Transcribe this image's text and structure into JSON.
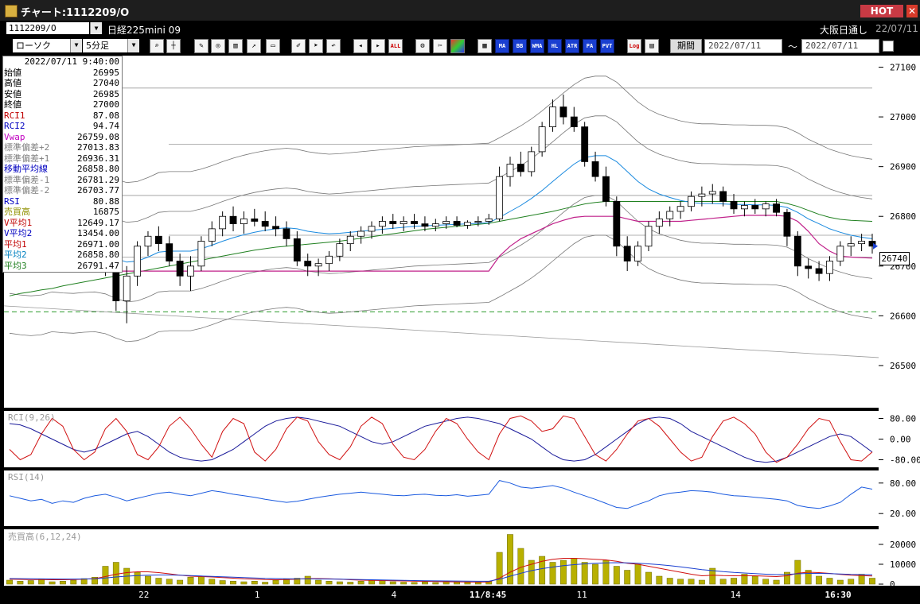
{
  "window": {
    "title": "チャート:1112209/O",
    "hot_label": "HOT",
    "close_glyph": "✕"
  },
  "header": {
    "symbol": "1112209/O",
    "instrument": "日経225mini 09",
    "exchange": "大阪日通し",
    "date": "22/07/11"
  },
  "toolbar": {
    "chart_type": "ローソク",
    "interval": "5分足",
    "period_label": "期間",
    "date_from": "2022/07/11",
    "date_to": "2022/07/11",
    "range_sep": "〜",
    "text_buttons": [
      "MA",
      "BB",
      "WMA",
      "HL",
      "ATR",
      "PA",
      "PVT"
    ],
    "log_label": "Log",
    "all_label": "ALL"
  },
  "infobox": {
    "datetime": "2022/07/11 9:40:00",
    "rows": [
      {
        "label": "始値",
        "value": "26995",
        "color": "#000000"
      },
      {
        "label": "高値",
        "value": "27040",
        "color": "#000000"
      },
      {
        "label": "安値",
        "value": "26985",
        "color": "#000000"
      },
      {
        "label": "終値",
        "value": "27000",
        "color": "#000000"
      },
      {
        "label": "RCI1",
        "value": "87.08",
        "color": "#c00000"
      },
      {
        "label": "RCI2",
        "value": "94.74",
        "color": "#0000c0"
      },
      {
        "label": "Vwap",
        "value": "26759.08",
        "color": "#c000c0"
      },
      {
        "label": "標準偏差+2",
        "value": "27013.83",
        "color": "#808080"
      },
      {
        "label": "標準偏差+1",
        "value": "26936.31",
        "color": "#808080"
      },
      {
        "label": "移動平均線",
        "value": "26858.80",
        "color": "#0000c0"
      },
      {
        "label": "標準偏差-1",
        "value": "26781.29",
        "color": "#808080"
      },
      {
        "label": "標準偏差-2",
        "value": "26703.77",
        "color": "#808080"
      },
      {
        "label": "RSI",
        "value": "80.88",
        "color": "#0000c0"
      },
      {
        "label": "売買高",
        "value": "16875",
        "color": "#909000"
      },
      {
        "label": "V平均1",
        "value": "12649.17",
        "color": "#c00000"
      },
      {
        "label": "V平均2",
        "value": "13454.00",
        "color": "#0000c0"
      },
      {
        "label": "平均1",
        "value": "26971.00",
        "color": "#c00000"
      },
      {
        "label": "平均2",
        "value": "26858.80",
        "color": "#0080c0"
      },
      {
        "label": "平均3",
        "value": "26791.47",
        "color": "#208020"
      }
    ]
  },
  "chart_data": {
    "type": "candlestick",
    "price_axis": {
      "range": [
        26420,
        27120
      ],
      "ticks": [
        "27100",
        "27000",
        "26900",
        "26800",
        "26700",
        "26600",
        "26500"
      ],
      "last_price": "26740"
    },
    "x_labels": [
      "22",
      "1",
      "4",
      "11/8:45",
      "11",
      "14",
      "16:30"
    ],
    "candles": [
      [
        26740,
        26780,
        26700,
        26730
      ],
      [
        26730,
        26760,
        26690,
        26710
      ],
      [
        26710,
        26745,
        26695,
        26720
      ],
      [
        26720,
        26760,
        26700,
        26745
      ],
      [
        26745,
        26770,
        26720,
        26735
      ],
      [
        26735,
        26755,
        26700,
        26715
      ],
      [
        26715,
        26740,
        26690,
        26725
      ],
      [
        26725,
        26750,
        26705,
        26740
      ],
      [
        26740,
        26755,
        26715,
        26720
      ],
      [
        26720,
        26735,
        26680,
        26690
      ],
      [
        26690,
        26700,
        26610,
        26630
      ],
      [
        26630,
        26700,
        26585,
        26680
      ],
      [
        26680,
        26750,
        26660,
        26740
      ],
      [
        26740,
        26770,
        26720,
        26760
      ],
      [
        26760,
        26780,
        26730,
        26745
      ],
      [
        26745,
        26760,
        26700,
        26710
      ],
      [
        26710,
        26725,
        26660,
        26680
      ],
      [
        26680,
        26720,
        26650,
        26700
      ],
      [
        26700,
        26760,
        26690,
        26750
      ],
      [
        26750,
        26790,
        26740,
        26775
      ],
      [
        26775,
        26810,
        26760,
        26800
      ],
      [
        26800,
        26820,
        26770,
        26785
      ],
      [
        26785,
        26810,
        26765,
        26795
      ],
      [
        26795,
        26815,
        26780,
        26790
      ],
      [
        26790,
        26810,
        26770,
        26780
      ],
      [
        26780,
        26800,
        26760,
        26775
      ],
      [
        26775,
        26790,
        26740,
        26755
      ],
      [
        26755,
        26770,
        26700,
        26710
      ],
      [
        26710,
        26725,
        26680,
        26700
      ],
      [
        26700,
        26715,
        26680,
        26705
      ],
      [
        26705,
        26730,
        26690,
        26720
      ],
      [
        26720,
        26755,
        26710,
        26745
      ],
      [
        26745,
        26770,
        26730,
        26760
      ],
      [
        26760,
        26780,
        26745,
        26770
      ],
      [
        26770,
        26790,
        26755,
        26780
      ],
      [
        26780,
        26800,
        26765,
        26790
      ],
      [
        26790,
        26805,
        26775,
        26785
      ],
      [
        26785,
        26800,
        26770,
        26790
      ],
      [
        26790,
        26805,
        26775,
        26785
      ],
      [
        26785,
        26800,
        26770,
        26780
      ],
      [
        26780,
        26795,
        26770,
        26785
      ],
      [
        26785,
        26800,
        26775,
        26790
      ],
      [
        26790,
        26800,
        26778,
        26782
      ],
      [
        26782,
        26792,
        26775,
        26788
      ],
      [
        26788,
        26800,
        26780,
        26790
      ],
      [
        26790,
        26805,
        26783,
        26795
      ],
      [
        26795,
        26900,
        26790,
        26880
      ],
      [
        26880,
        26920,
        26860,
        26905
      ],
      [
        26905,
        26930,
        26880,
        26890
      ],
      [
        26890,
        26940,
        26880,
        26930
      ],
      [
        26930,
        26990,
        26920,
        26980
      ],
      [
        26980,
        27035,
        26970,
        27020
      ],
      [
        27020,
        27045,
        26985,
        27000
      ],
      [
        27000,
        27020,
        26970,
        26980
      ],
      [
        26980,
        26990,
        26900,
        26910
      ],
      [
        26910,
        26930,
        26870,
        26880
      ],
      [
        26880,
        26900,
        26820,
        26830
      ],
      [
        26830,
        26840,
        26720,
        26740
      ],
      [
        26740,
        26760,
        26690,
        26710
      ],
      [
        26710,
        26750,
        26700,
        26740
      ],
      [
        26740,
        26790,
        26730,
        26780
      ],
      [
        26780,
        26810,
        26765,
        26795
      ],
      [
        26795,
        26820,
        26780,
        26810
      ],
      [
        26810,
        26830,
        26795,
        26820
      ],
      [
        26820,
        26850,
        26810,
        26840
      ],
      [
        26840,
        26860,
        26820,
        26845
      ],
      [
        26845,
        26865,
        26825,
        26850
      ],
      [
        26850,
        26860,
        26820,
        26830
      ],
      [
        26830,
        26845,
        26805,
        26815
      ],
      [
        26815,
        26830,
        26800,
        26822
      ],
      [
        26822,
        26835,
        26805,
        26815
      ],
      [
        26815,
        26830,
        26800,
        26825
      ],
      [
        26825,
        26835,
        26800,
        26808
      ],
      [
        26808,
        26815,
        26740,
        26760
      ],
      [
        26760,
        26770,
        26680,
        26700
      ],
      [
        26700,
        26715,
        26675,
        26695
      ],
      [
        26695,
        26710,
        26670,
        26685
      ],
      [
        26685,
        26720,
        26670,
        26710
      ],
      [
        26710,
        26750,
        26700,
        26740
      ],
      [
        26740,
        26760,
        26720,
        26745
      ],
      [
        26745,
        26765,
        26730,
        26750
      ],
      [
        26750,
        26765,
        26725,
        26740
      ]
    ],
    "sma": [
      26725,
      26722,
      26720,
      26722,
      26728,
      26726,
      26725,
      26727,
      26728,
      26724,
      26715,
      26708,
      26710,
      26718,
      26728,
      26730,
      26730,
      26730,
      26735,
      26742,
      26750,
      26757,
      26763,
      26768,
      26772,
      26775,
      26777,
      26775,
      26770,
      26767,
      26765,
      26766,
      26768,
      26770,
      26772,
      26774,
      26776,
      26778,
      26780,
      26781,
      26782,
      26783,
      26784,
      26785,
      26786,
      26787,
      26798,
      26810,
      26822,
      26836,
      26852,
      26870,
      26888,
      26905,
      26918,
      26922,
      26922,
      26910,
      26890,
      26870,
      26855,
      26845,
      26838,
      26832,
      26828,
      26826,
      26826,
      26825,
      26824,
      26824,
      26823,
      26823,
      26822,
      26818,
      26808,
      26795,
      26785,
      26775,
      26768,
      26762,
      26758,
      26755
    ],
    "bb_offset": 80,
    "ma_long": [
      26640,
      26645,
      26648,
      26652,
      26655,
      26660,
      26664,
      26668,
      26672,
      26676,
      26680,
      26684,
      26688,
      26692,
      26696,
      26700,
      26704,
      26708,
      26712,
      26716,
      26720,
      26724,
      26728,
      26732,
      26735,
      26738,
      26740,
      26742,
      26744,
      26746,
      26748,
      26750,
      26753,
      26756,
      26759,
      26762,
      26765,
      26768,
      26771,
      26774,
      26776,
      26778,
      26780,
      26782,
      26784,
      26786,
      26790,
      26794,
      26798,
      26802,
      26806,
      26810,
      26815,
      26820,
      26825,
      26828,
      26830,
      26830,
      26830,
      26830,
      26830,
      26830,
      26830,
      26830,
      26830,
      26830,
      26830,
      26830,
      26830,
      26830,
      26830,
      26830,
      26830,
      26826,
      26820,
      26812,
      26804,
      26798,
      26794,
      26792,
      26791,
      26790
    ],
    "vwap": [
      26690,
      26690,
      26690,
      26690,
      26690,
      26690,
      26690,
      26690,
      26690,
      26690,
      26690,
      26690,
      26690,
      26690,
      26690,
      26690,
      26690,
      26690,
      26690,
      26690,
      26690,
      26690,
      26690,
      26690,
      26690,
      26690,
      26690,
      26690,
      26690,
      26690,
      26690,
      26690,
      26690,
      26690,
      26690,
      26690,
      26690,
      26690,
      26690,
      26690,
      26690,
      26690,
      26690,
      26690,
      26690,
      26690,
      26720,
      26740,
      26755,
      26765,
      26775,
      26785,
      26792,
      26798,
      26800,
      26800,
      26800,
      26800,
      26795,
      26790,
      26790,
      26790,
      26790,
      26790,
      26792,
      26794,
      26796,
      26798,
      26800,
      26802,
      26802,
      26802,
      26802,
      26800,
      26790,
      26770,
      26745,
      26730,
      26720,
      26718,
      26717,
      26716
    ],
    "hlines": [
      27058,
      26945,
      26842,
      26762,
      26718
    ],
    "dashed_line": 26608,
    "trend_line": {
      "start": 26620,
      "end": 26516
    },
    "rci": {
      "label": "RCI(9,26)",
      "ticks": [
        "80.00",
        "0.00",
        "-80.00"
      ],
      "range": [
        -100,
        100
      ],
      "fast": [
        -40,
        -80,
        -60,
        20,
        80,
        50,
        -40,
        -80,
        -50,
        40,
        80,
        30,
        -60,
        -80,
        -30,
        50,
        85,
        40,
        -20,
        -70,
        30,
        80,
        60,
        -50,
        -85,
        -40,
        40,
        85,
        70,
        -10,
        -60,
        -80,
        -30,
        50,
        85,
        60,
        -20,
        -70,
        -80,
        -40,
        30,
        80,
        60,
        0,
        -50,
        -80,
        20,
        80,
        90,
        70,
        30,
        40,
        90,
        80,
        10,
        -60,
        -85,
        -40,
        20,
        70,
        80,
        50,
        0,
        -50,
        -85,
        -70,
        10,
        70,
        85,
        60,
        20,
        -50,
        -90,
        -70,
        -20,
        40,
        80,
        70,
        -10,
        -80,
        -85,
        -50
      ],
      "slow": [
        60,
        55,
        40,
        20,
        0,
        -20,
        -40,
        -50,
        -40,
        -20,
        0,
        20,
        30,
        10,
        -20,
        -50,
        -70,
        -80,
        -85,
        -80,
        -60,
        -40,
        -10,
        20,
        50,
        70,
        80,
        85,
        80,
        70,
        60,
        50,
        30,
        10,
        -10,
        -20,
        -10,
        10,
        30,
        50,
        60,
        70,
        80,
        85,
        80,
        70,
        60,
        40,
        20,
        0,
        -30,
        -60,
        -80,
        -85,
        -80,
        -60,
        -30,
        0,
        30,
        60,
        80,
        85,
        80,
        60,
        30,
        10,
        -10,
        -30,
        -50,
        -70,
        -85,
        -90,
        -85,
        -70,
        -50,
        -30,
        -10,
        10,
        20,
        10,
        -20,
        -50
      ]
    },
    "rsi": {
      "label": "RSI(14)",
      "ticks": [
        "80.00",
        "20.00"
      ],
      "range": [
        0,
        100
      ],
      "values": [
        55,
        50,
        45,
        48,
        40,
        45,
        42,
        50,
        55,
        58,
        52,
        45,
        50,
        55,
        60,
        62,
        58,
        55,
        60,
        65,
        62,
        58,
        55,
        52,
        48,
        45,
        42,
        44,
        48,
        52,
        55,
        58,
        60,
        62,
        60,
        58,
        56,
        55,
        57,
        58,
        56,
        55,
        57,
        54,
        56,
        58,
        85,
        80,
        72,
        70,
        72,
        75,
        70,
        62,
        55,
        48,
        40,
        32,
        30,
        38,
        45,
        55,
        60,
        62,
        65,
        64,
        62,
        58,
        55,
        54,
        52,
        50,
        48,
        45,
        36,
        32,
        30,
        35,
        42,
        58,
        72,
        68
      ]
    },
    "volume": {
      "label": "売買高(6,12,24)",
      "ticks": [
        "20000",
        "10000",
        "0"
      ],
      "range": [
        0,
        26000
      ],
      "values": [
        2000,
        1500,
        1800,
        2500,
        1200,
        1500,
        2000,
        2800,
        3500,
        9000,
        11000,
        8000,
        6000,
        4000,
        3000,
        2500,
        2000,
        3500,
        4000,
        2500,
        1800,
        1500,
        1200,
        1500,
        1000,
        2000,
        2500,
        3000,
        4000,
        2000,
        1500,
        1200,
        1000,
        1500,
        2000,
        1800,
        1200,
        1000,
        900,
        1100,
        800,
        1200,
        1000,
        900,
        800,
        1500,
        16000,
        25000,
        18000,
        12000,
        14000,
        11000,
        12000,
        13000,
        11000,
        10000,
        12000,
        9000,
        7000,
        10000,
        6000,
        4000,
        3000,
        2500,
        2500,
        2000,
        8000,
        2500,
        3000,
        5000,
        4000,
        2500,
        2000,
        6000,
        12000,
        7000,
        4000,
        3000,
        2000,
        2500,
        5000,
        3000
      ],
      "avg1": [
        2500,
        2400,
        2300,
        2300,
        2200,
        2200,
        2300,
        2500,
        2800,
        3800,
        5000,
        5800,
        6200,
        6200,
        5800,
        5200,
        4500,
        4000,
        3800,
        3600,
        3300,
        3000,
        2700,
        2500,
        2300,
        2200,
        2300,
        2500,
        2800,
        2800,
        2700,
        2500,
        2200,
        2000,
        1900,
        1800,
        1700,
        1600,
        1500,
        1400,
        1300,
        1200,
        1150,
        1100,
        1050,
        1100,
        3000,
        6000,
        8500,
        10000,
        11500,
        12500,
        13000,
        13000,
        12800,
        12500,
        12200,
        11500,
        10500,
        10000,
        9000,
        8000,
        7000,
        6000,
        5000,
        4200,
        4500,
        4300,
        4200,
        4300,
        4200,
        4000,
        3800,
        4200,
        5500,
        6000,
        5800,
        5400,
        4900,
        4500,
        4300,
        4100
      ],
      "avg2": [
        2800,
        2750,
        2700,
        2650,
        2600,
        2550,
        2550,
        2600,
        2700,
        3100,
        3600,
        4000,
        4300,
        4500,
        4600,
        4600,
        4500,
        4300,
        4100,
        3900,
        3700,
        3500,
        3300,
        3100,
        2900,
        2800,
        2700,
        2650,
        2650,
        2600,
        2550,
        2500,
        2400,
        2300,
        2200,
        2100,
        2000,
        1900,
        1800,
        1700,
        1650,
        1600,
        1550,
        1500,
        1450,
        1450,
        2500,
        4000,
        5500,
        6800,
        7800,
        8600,
        9300,
        9800,
        10200,
        10500,
        10700,
        10800,
        10700,
        10500,
        10200,
        9800,
        9300,
        8700,
        8000,
        7300,
        6800,
        6300,
        5900,
        5600,
        5300,
        5000,
        4800,
        4900,
        5200,
        5400,
        5400,
        5300,
        5100,
        4900,
        4800,
        4700
      ]
    }
  }
}
